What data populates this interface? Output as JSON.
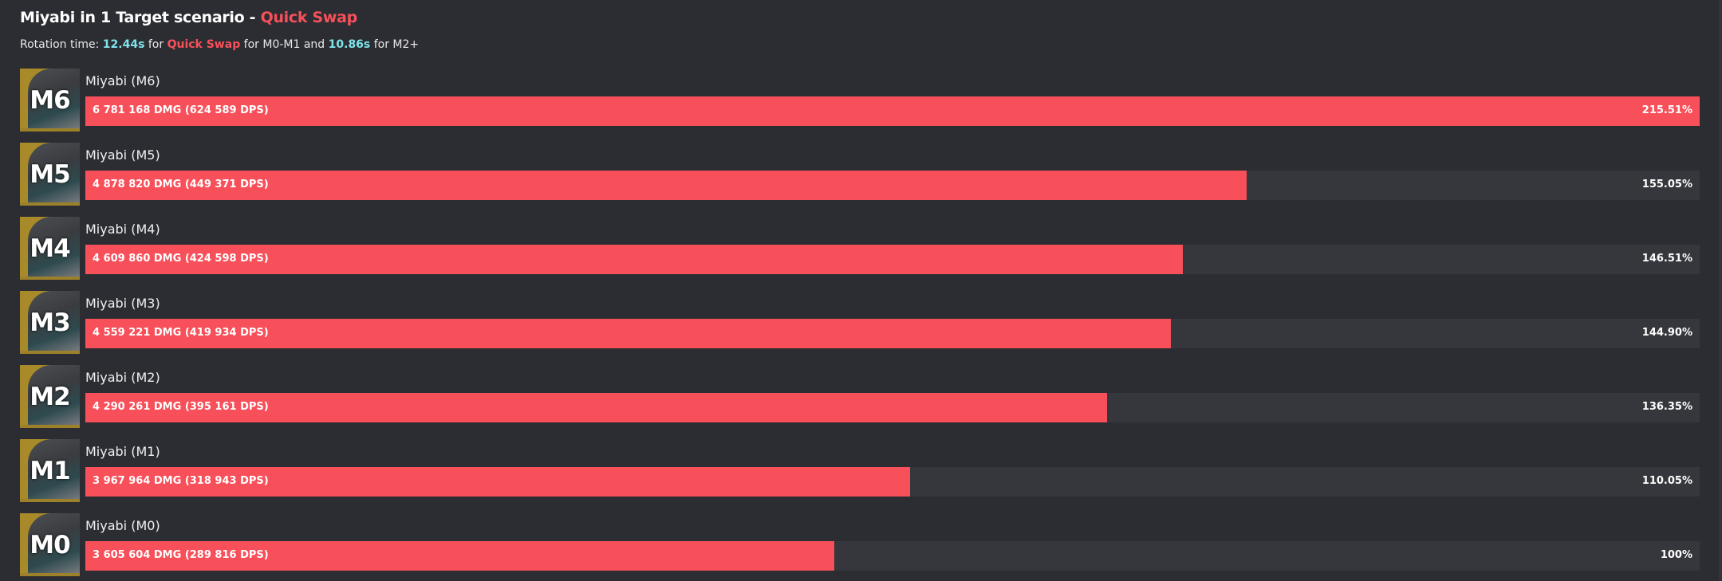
{
  "header": {
    "title_prefix": "Miyabi in 1 Target scenario - ",
    "title_highlight": "Quick Swap",
    "sub_1": "Rotation time: ",
    "sub_time1": "12.44s",
    "sub_2": " for ",
    "sub_mode": "Quick Swap",
    "sub_3": " for M0-M1 and ",
    "sub_time2": "10.86s",
    "sub_4": " for M2+"
  },
  "colors": {
    "bar": "#f7505a",
    "track": "#36373c",
    "accent_cyan": "#7fe3ea",
    "background": "#2c2d32"
  },
  "max_percent": 215.51,
  "rows": [
    {
      "badge": "M6",
      "name": "Miyabi (M6)",
      "dmg": "6 781 168 DMG (624 589 DPS)",
      "pct_label": "215.51%",
      "pct": 215.51
    },
    {
      "badge": "M5",
      "name": "Miyabi (M5)",
      "dmg": "4 878 820 DMG (449 371 DPS)",
      "pct_label": "155.05%",
      "pct": 155.05
    },
    {
      "badge": "M4",
      "name": "Miyabi (M4)",
      "dmg": "4 609 860 DMG (424 598 DPS)",
      "pct_label": "146.51%",
      "pct": 146.51
    },
    {
      "badge": "M3",
      "name": "Miyabi (M3)",
      "dmg": "4 559 221 DMG (419 934 DPS)",
      "pct_label": "144.90%",
      "pct": 144.9
    },
    {
      "badge": "M2",
      "name": "Miyabi (M2)",
      "dmg": "4 290 261 DMG (395 161 DPS)",
      "pct_label": "136.35%",
      "pct": 136.35
    },
    {
      "badge": "M1",
      "name": "Miyabi (M1)",
      "dmg": "3 967 964 DMG (318 943 DPS)",
      "pct_label": "110.05%",
      "pct": 110.05
    },
    {
      "badge": "M0",
      "name": "Miyabi (M0)",
      "dmg": "3 605 604 DMG (289 816 DPS)",
      "pct_label": "100%",
      "pct": 100
    }
  ]
}
